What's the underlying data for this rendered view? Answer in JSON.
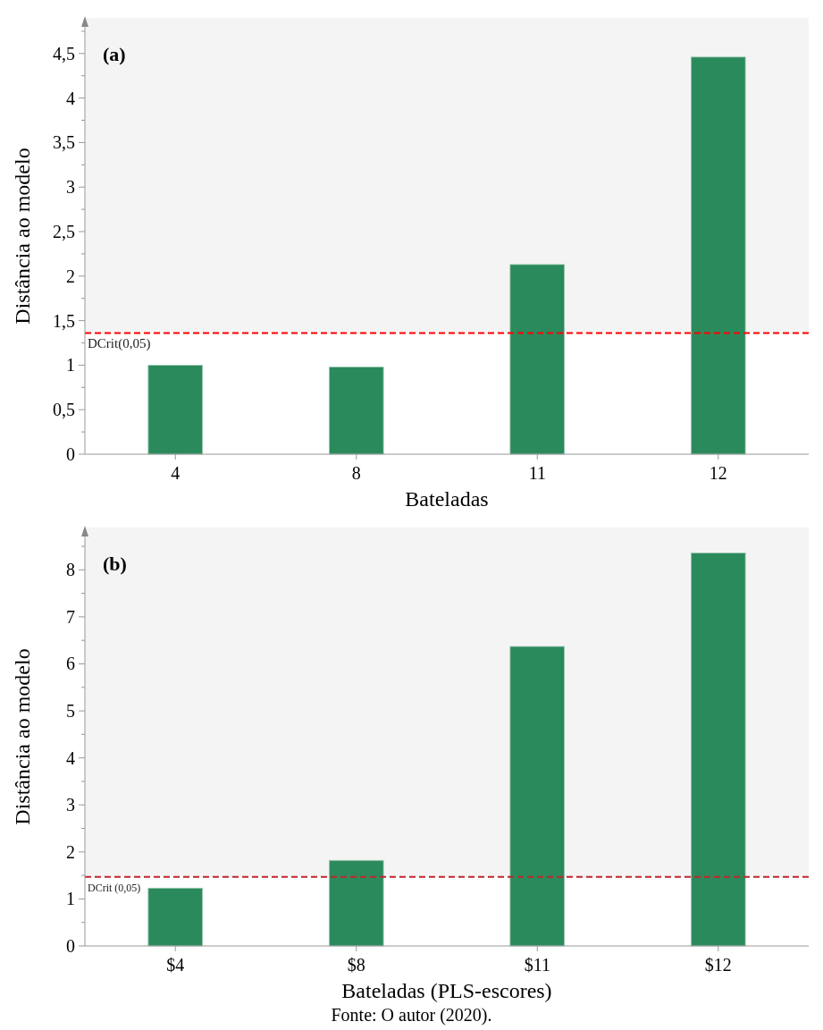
{
  "chart_data": [
    {
      "type": "bar",
      "title": "(a)",
      "xlabel": "Bateladas",
      "ylabel": "Distância ao modelo",
      "categories": [
        "4",
        "8",
        "11",
        "12"
      ],
      "values": [
        1.0,
        0.98,
        2.13,
        4.46
      ],
      "color": "#2b8a5c",
      "ylim": [
        0,
        4.9
      ],
      "yticks": [
        0,
        {
          "value": 0.25,
          "label": null
        },
        {
          "value": 0.5,
          "label": "0,5"
        },
        {
          "value": 0.75,
          "label": null
        },
        1,
        {
          "value": 1.25,
          "label": null
        },
        {
          "value": 1.5,
          "label": "1,5"
        },
        {
          "value": 1.75,
          "label": null
        },
        2,
        {
          "value": 2.25,
          "label": null
        },
        {
          "value": 2.5,
          "label": "2,5"
        },
        {
          "value": 2.75,
          "label": null
        },
        3,
        {
          "value": 3.25,
          "label": null
        },
        {
          "value": 3.5,
          "label": "3,5"
        },
        {
          "value": 3.75,
          "label": null
        },
        4,
        {
          "value": 4.25,
          "label": null
        },
        {
          "value": 4.5,
          "label": "4,5"
        },
        {
          "value": 4.75,
          "label": null
        }
      ],
      "ref_lines": [
        {
          "axis": "y",
          "value": 1.36,
          "label": "DCrit(0,05)",
          "color": "#ff0000",
          "line_style": "dashed"
        }
      ],
      "bands": [
        {
          "axis": "y",
          "from": 1.36,
          "to": 4.9,
          "color": "#f4f4f4"
        }
      ]
    },
    {
      "type": "bar",
      "title": "(b)",
      "xlabel": "Bateladas (PLS-escores)",
      "ylabel": "Distância ao modelo",
      "categories": [
        "$4",
        "$8",
        "$11",
        "$12"
      ],
      "values": [
        1.23,
        1.82,
        6.37,
        8.36
      ],
      "color": "#2b8a5c",
      "ylim": [
        0,
        8.9
      ],
      "yticks": [
        0,
        {
          "value": 0.5,
          "label": null
        },
        1,
        {
          "value": 1.5,
          "label": null
        },
        2,
        {
          "value": 2.5,
          "label": null
        },
        3,
        {
          "value": 3.5,
          "label": null
        },
        4,
        {
          "value": 4.5,
          "label": null
        },
        5,
        {
          "value": 5.5,
          "label": null
        },
        6,
        {
          "value": 6.5,
          "label": null
        },
        7,
        {
          "value": 7.5,
          "label": null
        },
        8,
        {
          "value": 8.5,
          "label": null
        }
      ],
      "ref_lines": [
        {
          "axis": "y",
          "value": 1.47,
          "label": "DCrit (0,05)",
          "color": "#c0262c",
          "line_style": "dashed"
        }
      ],
      "bands": [
        {
          "axis": "y",
          "from": 1.47,
          "to": 8.9,
          "color": "#f4f4f4"
        }
      ],
      "annotations": [
        "Fonte: O autor (2020)."
      ]
    }
  ]
}
